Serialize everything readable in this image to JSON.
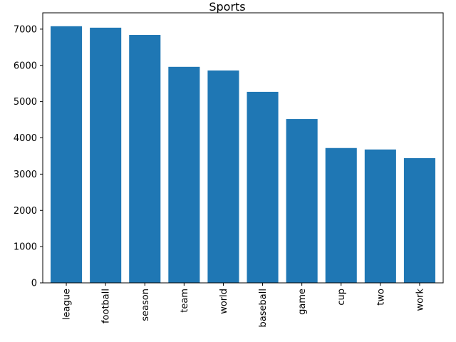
{
  "chart_data": {
    "type": "bar",
    "title": "Sports",
    "xlabel": "",
    "ylabel": "",
    "categories": [
      "league",
      "football",
      "season",
      "team",
      "world",
      "baseball",
      "game",
      "cup",
      "two",
      "work"
    ],
    "values": [
      7080,
      7040,
      6840,
      5960,
      5860,
      5270,
      4520,
      3720,
      3680,
      3440
    ],
    "ylim": [
      0,
      7450
    ],
    "yticks": [
      0,
      1000,
      2000,
      3000,
      4000,
      5000,
      6000,
      7000
    ],
    "bar_color": "#1f77b4",
    "grid": false,
    "legend": "none"
  }
}
